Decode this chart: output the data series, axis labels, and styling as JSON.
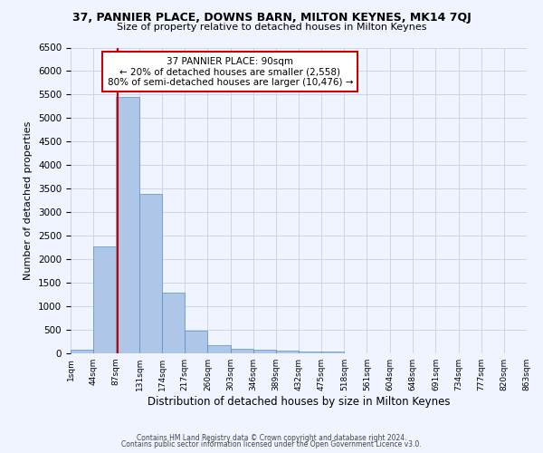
{
  "title1": "37, PANNIER PLACE, DOWNS BARN, MILTON KEYNES, MK14 7QJ",
  "title2": "Size of property relative to detached houses in Milton Keynes",
  "xlabel": "Distribution of detached houses by size in Milton Keynes",
  "ylabel": "Number of detached properties",
  "footer1": "Contains HM Land Registry data © Crown copyright and database right 2024.",
  "footer2": "Contains public sector information licensed under the Open Government Licence v3.0.",
  "annotation_title": "37 PANNIER PLACE: 90sqm",
  "annotation_line1": "← 20% of detached houses are smaller (2,558)",
  "annotation_line2": "80% of semi-detached houses are larger (10,476) →",
  "property_size_sqm": 90,
  "bin_edges": [
    1,
    44,
    87,
    131,
    174,
    217,
    260,
    303,
    346,
    389,
    432,
    475,
    518,
    561,
    604,
    648,
    691,
    734,
    777,
    820,
    863
  ],
  "bar_heights": [
    75,
    2270,
    5450,
    3390,
    1290,
    480,
    165,
    90,
    75,
    55,
    40,
    30,
    0,
    0,
    0,
    0,
    0,
    0,
    0,
    0
  ],
  "bar_color": "#aec6e8",
  "bar_edge_color": "#5a8fc0",
  "highlight_line_color": "#cc0000",
  "annotation_box_color": "#ffffff",
  "annotation_box_edge_color": "#cc0000",
  "background_color": "#f0f4ff",
  "grid_color": "#c8d0e8",
  "ylim": [
    0,
    6500
  ],
  "yticks": [
    0,
    500,
    1000,
    1500,
    2000,
    2500,
    3000,
    3500,
    4000,
    4500,
    5000,
    5500,
    6000,
    6500
  ]
}
